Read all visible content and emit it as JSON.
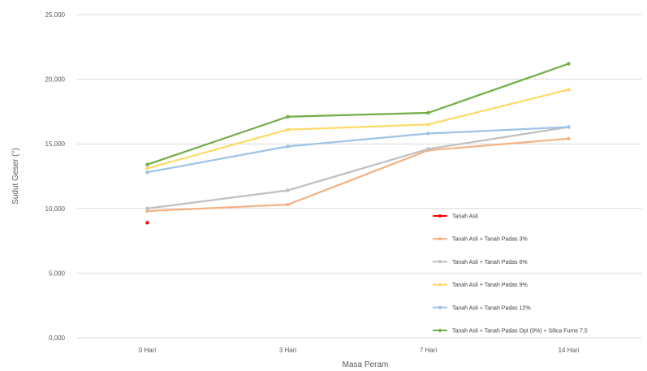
{
  "chart_data": {
    "type": "line",
    "title": "",
    "xlabel": "Masa Peram",
    "ylabel": "Sudut Geser (°)",
    "categories": [
      "0 Hari",
      "3 Hari",
      "7 Hari",
      "14 Hari"
    ],
    "ylim": [
      0,
      25
    ],
    "yticks": [
      0,
      5,
      10,
      15,
      20,
      25
    ],
    "ytick_labels": [
      "0,000",
      "5,000",
      "10,000",
      "15,000",
      "20,000",
      "25,000"
    ],
    "grid": true,
    "legend_position": "bottom-right",
    "series": [
      {
        "name": "Tanah Asli",
        "color": "#ff0000",
        "values": [
          8.9,
          null,
          null,
          null
        ]
      },
      {
        "name": "Tanah Asli + Tanah Padas 3%",
        "color": "#f4b183",
        "values": [
          9.8,
          10.3,
          14.5,
          15.4
        ]
      },
      {
        "name": "Tanah Asli + Tanah Padas 6%",
        "color": "#bfbfbf",
        "values": [
          10.0,
          11.4,
          14.6,
          16.3
        ]
      },
      {
        "name": "Tanah Asli + Tanah Padas 9%",
        "color": "#ffd966",
        "values": [
          13.1,
          16.1,
          16.5,
          19.2
        ]
      },
      {
        "name": "Tanah Asli + Tanah Padas 12%",
        "color": "#9dc3e6",
        "values": [
          12.8,
          14.8,
          15.8,
          16.3
        ]
      },
      {
        "name": "Tanah Asli + Tanah Padas Opt (9%) + Silica Fume 7,5",
        "color": "#70ad47",
        "values": [
          13.4,
          17.1,
          17.4,
          21.2
        ]
      }
    ]
  }
}
